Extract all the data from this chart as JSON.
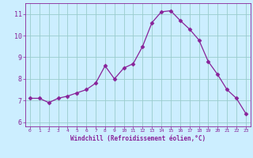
{
  "x": [
    0,
    1,
    2,
    3,
    4,
    5,
    6,
    7,
    8,
    9,
    10,
    11,
    12,
    13,
    14,
    15,
    16,
    17,
    18,
    19,
    20,
    21,
    22,
    23
  ],
  "y": [
    7.1,
    7.1,
    6.9,
    7.1,
    7.2,
    7.35,
    7.5,
    7.8,
    8.6,
    8.0,
    8.5,
    8.7,
    9.5,
    10.6,
    11.1,
    11.15,
    10.7,
    10.3,
    9.8,
    8.8,
    8.2,
    7.5,
    7.1,
    6.4
  ],
  "line_color": "#882299",
  "marker": "D",
  "marker_size": 2.5,
  "bg_color": "#cceeff",
  "grid_color": "#99cccc",
  "xlabel": "Windchill (Refroidissement éolien,°C)",
  "xlabel_color": "#882299",
  "tick_color": "#882299",
  "ylim": [
    5.8,
    11.5
  ],
  "xlim": [
    -0.5,
    23.5
  ],
  "yticks": [
    6,
    7,
    8,
    9,
    10,
    11
  ],
  "xticks": [
    0,
    1,
    2,
    3,
    4,
    5,
    6,
    7,
    8,
    9,
    10,
    11,
    12,
    13,
    14,
    15,
    16,
    17,
    18,
    19,
    20,
    21,
    22,
    23
  ],
  "fig_width": 3.2,
  "fig_height": 2.0,
  "dpi": 100
}
